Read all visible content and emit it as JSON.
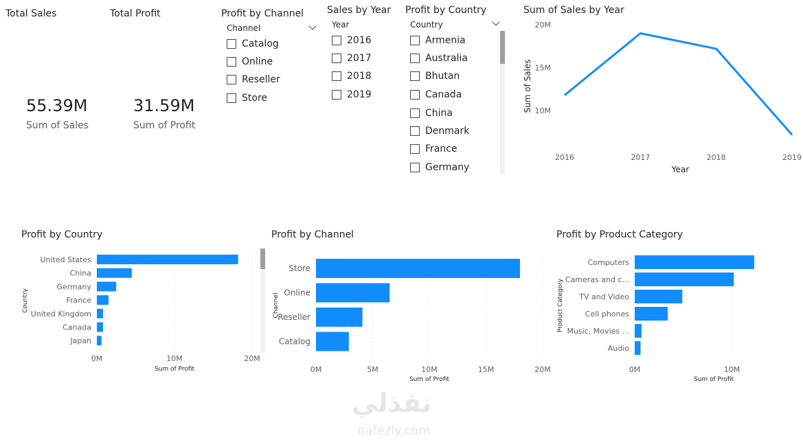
{
  "kpis": {
    "total_sales": {
      "title": "Total Sales",
      "value": "55.39M",
      "label": "Sum of Sales"
    },
    "total_profit": {
      "title": "Total Profit",
      "value": "31.59M",
      "label": "Sum of Profit"
    }
  },
  "slicers": {
    "channel": {
      "title": "Profit by Channel",
      "header": "Channel",
      "items": [
        "Catalog",
        "Online",
        "Reseller",
        "Store"
      ]
    },
    "year": {
      "title": "Sales by Year",
      "header": "Year",
      "items": [
        "2016",
        "2017",
        "2018",
        "2019"
      ]
    },
    "country": {
      "title": "Profit by Country",
      "header": "Country",
      "items": [
        "Armenia",
        "Australia",
        "Bhutan",
        "Canada",
        "China",
        "Denmark",
        "France",
        "Germany"
      ]
    }
  },
  "watermark": {
    "arabic": "نفذلي",
    "latin": "nafezly.com"
  },
  "colors": {
    "series": "#118DFF",
    "grid": "#e8e8e8",
    "text": "#605e5c"
  },
  "chart_data": [
    {
      "id": "sales_by_year",
      "type": "line",
      "title": "Sum of Sales by Year",
      "xlabel": "Year",
      "ylabel": "Sum of Sales",
      "x": [
        "2016",
        "2017",
        "2018",
        "2019"
      ],
      "values": [
        11.8,
        19.0,
        17.2,
        7.2
      ],
      "yticks": [
        "10M",
        "15M",
        "20M"
      ],
      "ytick_values": [
        10,
        15,
        20
      ],
      "ylim": [
        6.5,
        20
      ],
      "grid": false
    },
    {
      "id": "profit_by_country",
      "type": "bar",
      "orientation": "horizontal",
      "title": "Profit by Country",
      "xlabel": "Sum of Profit",
      "ylabel": "Country",
      "categories": [
        "United States",
        "China",
        "Germany",
        "France",
        "United Kingdom",
        "Canada",
        "Japan"
      ],
      "values": [
        18.2,
        4.5,
        2.5,
        1.5,
        0.8,
        0.8,
        0.6
      ],
      "xticks": [
        "0M",
        "10M",
        "20M"
      ],
      "xtick_values": [
        0,
        10,
        20
      ],
      "xlim": [
        0,
        20
      ],
      "grid": true
    },
    {
      "id": "profit_by_channel",
      "type": "bar",
      "orientation": "horizontal",
      "title": "Profit by Channel",
      "xlabel": "Sum of Profit",
      "ylabel": "Channel",
      "categories": [
        "Store",
        "Online",
        "Reseller",
        "Catalog"
      ],
      "values": [
        18.0,
        6.5,
        4.1,
        2.9
      ],
      "xticks": [
        "0M",
        "5M",
        "10M",
        "15M",
        "20M"
      ],
      "xtick_values": [
        0,
        5,
        10,
        15,
        20
      ],
      "xlim": [
        0,
        20
      ],
      "grid": true
    },
    {
      "id": "profit_by_category",
      "type": "bar",
      "orientation": "horizontal",
      "title": "Profit by Product Category",
      "xlabel": "Sum of Profit",
      "ylabel": "Product Category",
      "categories": [
        "Computers",
        "Cameras and c...",
        "TV and Video",
        "Cell phones",
        "Music, Movies ...",
        "Audio"
      ],
      "values": [
        12.3,
        10.2,
        4.9,
        3.4,
        0.7,
        0.6
      ],
      "xticks": [
        "0M",
        "10M"
      ],
      "xtick_values": [
        0,
        10
      ],
      "xlim": [
        0,
        15.2
      ],
      "grid": true
    }
  ]
}
